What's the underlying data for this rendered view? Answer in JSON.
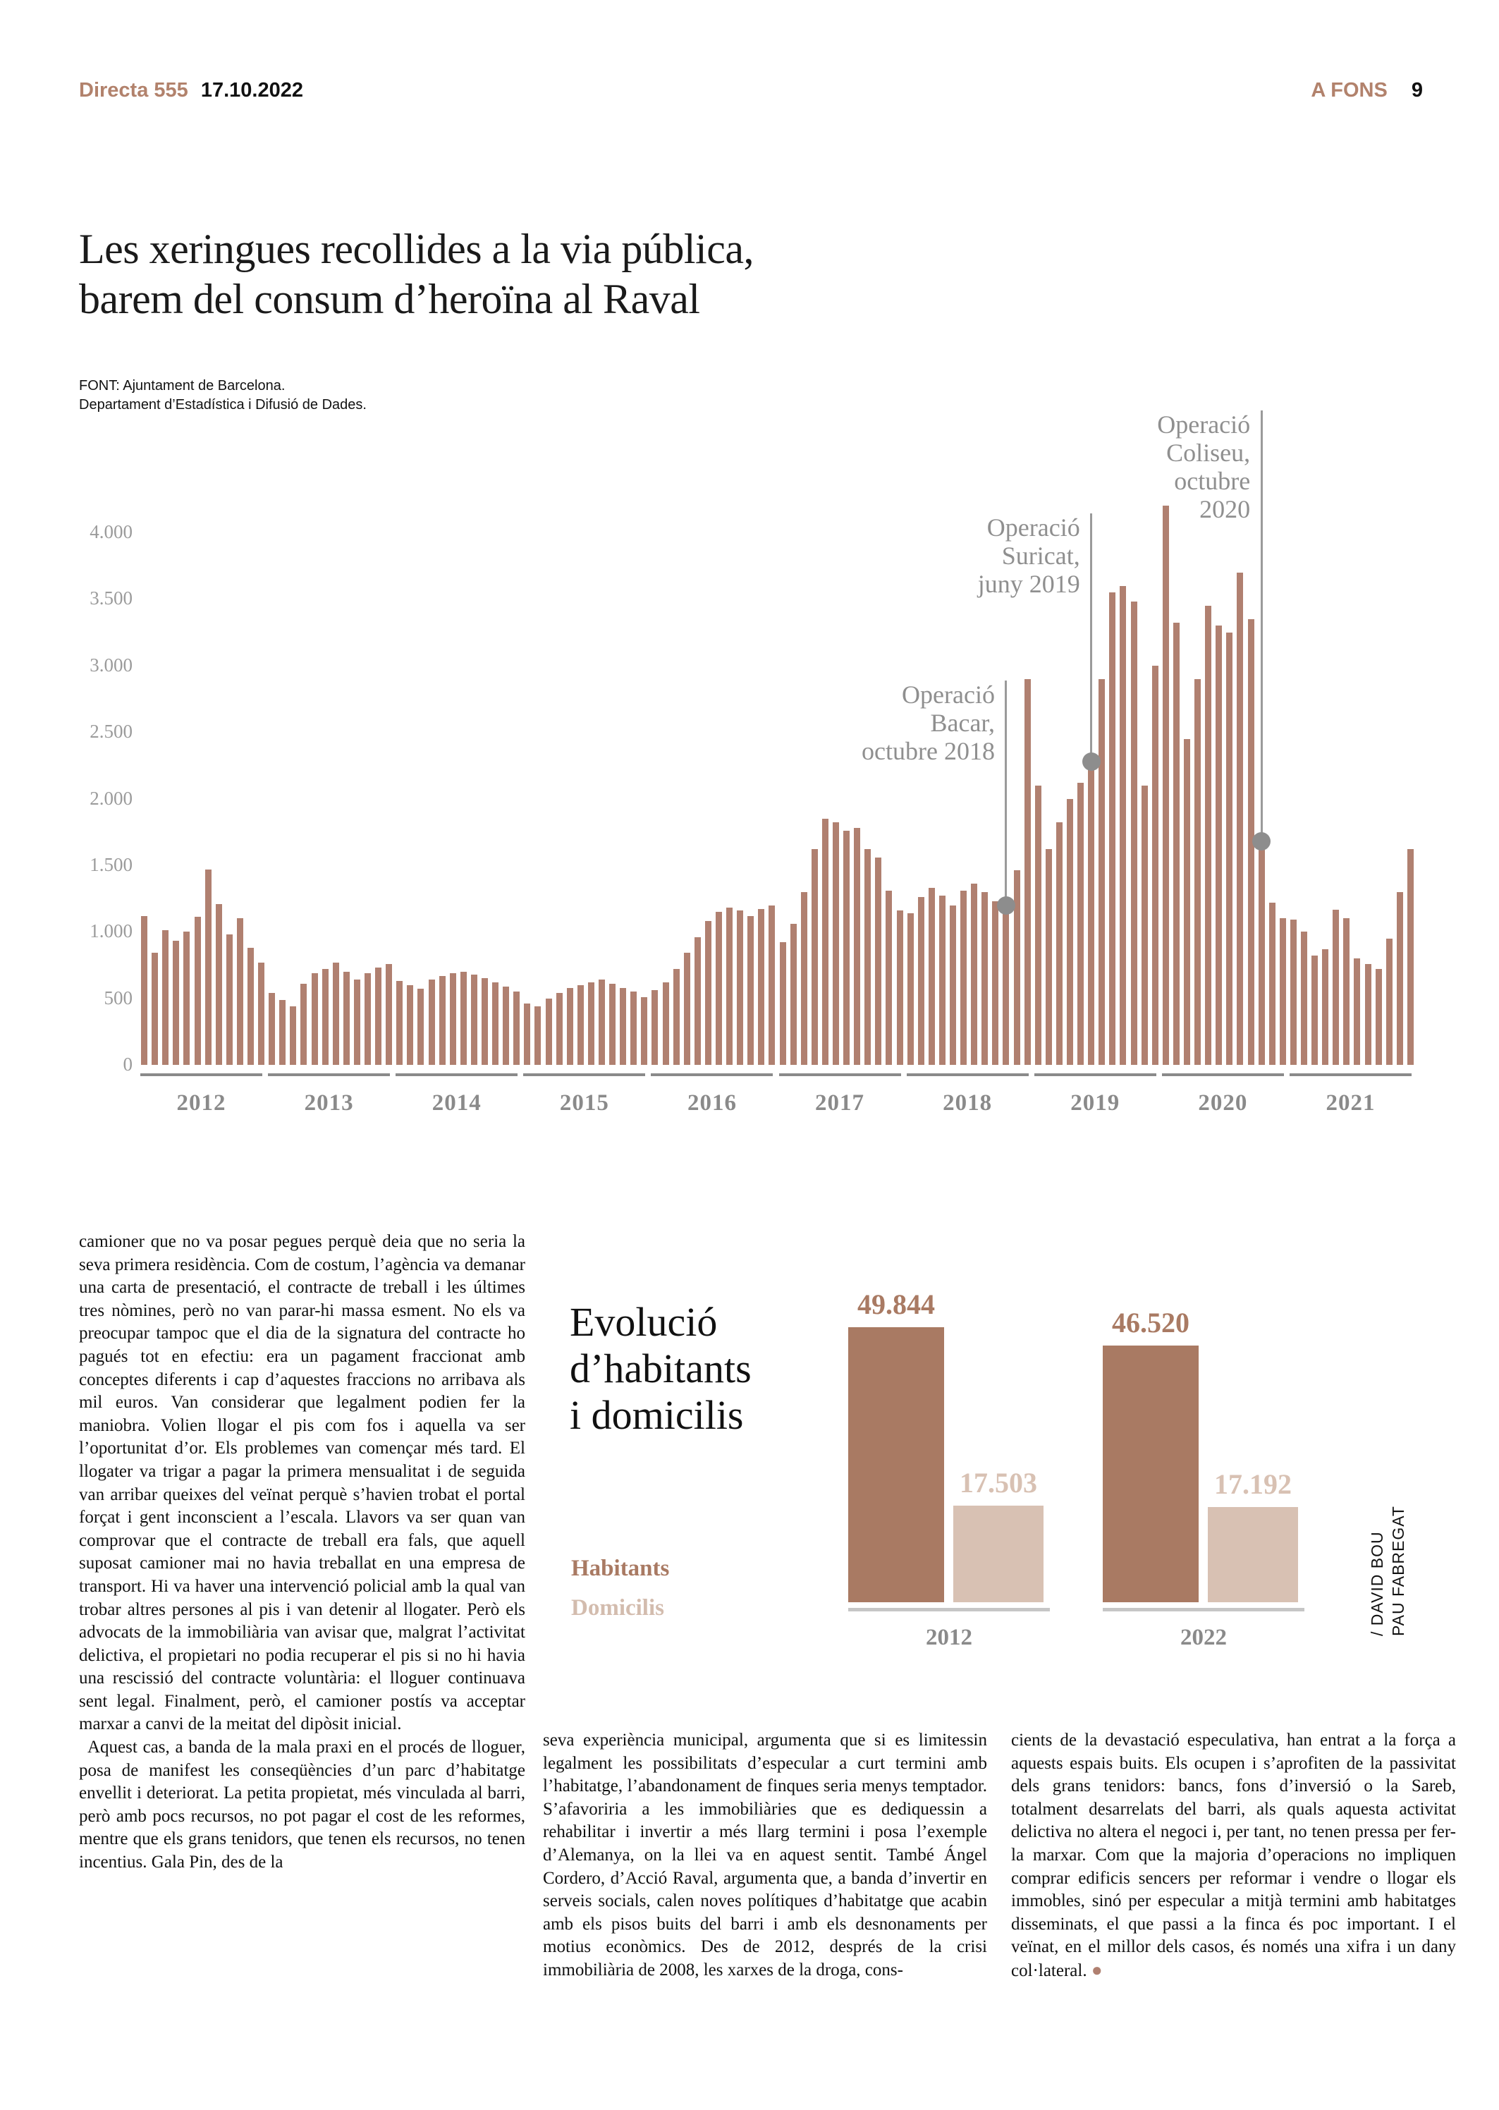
{
  "header": {
    "brand": "Directa 555",
    "date": "17.10.2022",
    "section": "A FONS",
    "page_number": "9"
  },
  "headline": {
    "line1": "Les xeringues recollides a la via pública,",
    "line2": "barem del consum d’heroïna al Raval"
  },
  "source": {
    "line1": "FONT: Ajuntament de Barcelona.",
    "line2": "Departament d’Estadística i Difusió de Dades."
  },
  "chart_data": [
    {
      "id": "xeringues-monthly",
      "type": "bar",
      "title": "Les xeringues recollides a la via pública, barem del consum d’heroïna al Raval",
      "bar_color": "#b08070",
      "ylim": [
        0,
        4000
      ],
      "ytick_labels": [
        "0",
        "500",
        "1.000",
        "1.500",
        "2.000",
        "2.500",
        "3.000",
        "3.500",
        "4.000"
      ],
      "years": [
        "2012",
        "2013",
        "2014",
        "2015",
        "2016",
        "2017",
        "2018",
        "2019",
        "2020",
        "2021"
      ],
      "monthly_values": [
        1120,
        840,
        1010,
        930,
        1000,
        1110,
        1470,
        1210,
        980,
        1100,
        880,
        770,
        540,
        490,
        440,
        610,
        690,
        720,
        770,
        700,
        640,
        690,
        730,
        760,
        630,
        600,
        570,
        640,
        670,
        690,
        700,
        680,
        650,
        620,
        590,
        550,
        460,
        440,
        500,
        540,
        580,
        600,
        620,
        640,
        610,
        580,
        550,
        510,
        560,
        620,
        720,
        840,
        960,
        1080,
        1150,
        1180,
        1160,
        1120,
        1170,
        1200,
        920,
        1060,
        1300,
        1620,
        1850,
        1820,
        1760,
        1780,
        1620,
        1560,
        1310,
        1160,
        1140,
        1260,
        1330,
        1270,
        1200,
        1310,
        1360,
        1300,
        1230,
        1200,
        1460,
        2900,
        2100,
        1620,
        1820,
        2000,
        2120,
        2280,
        2900,
        3550,
        3600,
        3480,
        2100,
        3000,
        4200,
        3320,
        2450,
        2900,
        3450,
        3300,
        3250,
        3700,
        3350,
        1680,
        1220,
        1100,
        1090,
        1000,
        820,
        870,
        1165,
        1100,
        800,
        760,
        720,
        950,
        1300,
        1620
      ],
      "annotations": [
        {
          "text": "Operació Bacar, octubre 2018",
          "lines": [
            "Operació",
            "Bacar,",
            "octubre 2018"
          ],
          "month_index": 81,
          "value": 1200
        },
        {
          "text": "Operació Suricat, juny 2019",
          "lines": [
            "Operació",
            "Suricat,",
            "juny 2019"
          ],
          "month_index": 89,
          "value": 2280
        },
        {
          "text": "Operació Coliseu, octubre 2020",
          "lines": [
            "Operació",
            "Coliseu,",
            "octubre",
            "2020"
          ],
          "month_index": 105,
          "value": 1680
        }
      ]
    },
    {
      "id": "habitants-domicilis",
      "type": "bar",
      "title": "Evolució d’habitants i domicilis",
      "title_lines": [
        "Evolució",
        "d’habitants",
        "i domicilis"
      ],
      "legend": [
        {
          "label": "Habitants",
          "color": "#a97a63"
        },
        {
          "label": "Domicilis",
          "color": "#d8c1b3"
        }
      ],
      "categories": [
        "2012",
        "2022"
      ],
      "series": [
        {
          "name": "Habitants",
          "values": [
            49844,
            46520
          ],
          "labels": [
            "49.844",
            "46.520"
          ]
        },
        {
          "name": "Domicilis",
          "values": [
            17503,
            17192
          ],
          "labels": [
            "17.503",
            "17.192"
          ]
        }
      ]
    }
  ],
  "mini_chart_text": {
    "title_line1": "Evolució",
    "title_line2": "d’habitants",
    "title_line3": "i domicilis",
    "legend_habitants": "Habitants",
    "legend_domicilis": "Domicilis"
  },
  "article": {
    "col1_p1": "camioner que no va posar pegues perquè deia que no seria la seva primera residència. Com de costum, l’agència va demanar una carta de presentació, el contracte de treball i les últimes tres nòmines, però no van parar-hi massa esment. No els va preocupar tampoc que el dia de la signatura del contracte ho pagués tot en efectiu: era un pagament fraccionat amb conceptes diferents i cap d’aquestes fraccions no arribava als mil euros. Van considerar que legalment podien fer la maniobra. Volien llogar el pis com fos i aquella va ser l’oportunitat d’or. Els problemes van començar més tard. El llogater va trigar a pagar la primera mensualitat i de seguida van arribar queixes del veïnat perquè s’havien trobat el portal forçat i gent inconscient a l’escala. Llavors va ser quan van comprovar que el contracte de treball era fals, que aquell suposat camioner mai no havia treballat en una empresa de transport. Hi va haver una intervenció policial amb la qual van trobar altres persones al pis i van detenir al llogater. Però els advocats de la immobiliària van avisar que, malgrat l’activitat delictiva, el propietari no podia recuperar el pis si no hi havia una rescissió del contracte voluntària: el lloguer continuava sent legal. Finalment, però, el camioner postís va acceptar marxar a canvi de la meitat del dipòsit inicial.",
    "col1_p2": "Aquest cas, a banda de la mala praxi en el procés de lloguer, posa de manifest les conseqüències d’un parc d’habitatge envellit i deteriorat. La petita propietat, més vinculada al barri, però amb pocs recursos, no pot pagar el cost de les reformes, mentre que els grans tenidors, que tenen els recursos, no tenen incentius. Gala Pin, des de la",
    "col2_p1": "seva experiència municipal, argumenta que si es limitessin legalment les possibilitats d’especular a curt termini amb l’habitatge, l’abandonament de finques seria menys temptador. S’afavoriria a les immobiliàries que es dediquessin a rehabilitar i invertir a més llarg termini i posa l’exemple d’Alemanya, on la llei va en aquest sentit. També Ángel Cordero, d’Acció Raval, argumenta que, a banda d’invertir en serveis socials, calen noves polítiques d’habitatge que acabin amb els pisos buits del barri i amb els desnonaments per motius econòmics. Des de 2012, després de la crisi immobiliària de 2008, les xarxes de la droga, cons-",
    "col3_p1": "cients de la devastació especulativa, han entrat a la força a aquests espais buits. Els ocupen i s’aprofiten de la passivitat dels grans tenidors: bancs, fons d’inversió o la Sareb, totalment desarrelats del barri, als quals aquesta activitat delictiva no altera el negoci i, per tant, no tenen pressa per fer-la marxar. Com que la majoria d’operacions no impliquen comprar edificis sencers per reformar i vendre o llogar els immobles, sinó per especular a mitjà termini amb habitatges disseminats, el que passi a la finca és poc important. I el veïnat, en el millor dels casos, és només una xifra i un dany col·lateral.",
    "end_mark": "●"
  },
  "credit": {
    "line1": "/ DAVID BOU",
    "line2": "PAU FABREGAT"
  }
}
